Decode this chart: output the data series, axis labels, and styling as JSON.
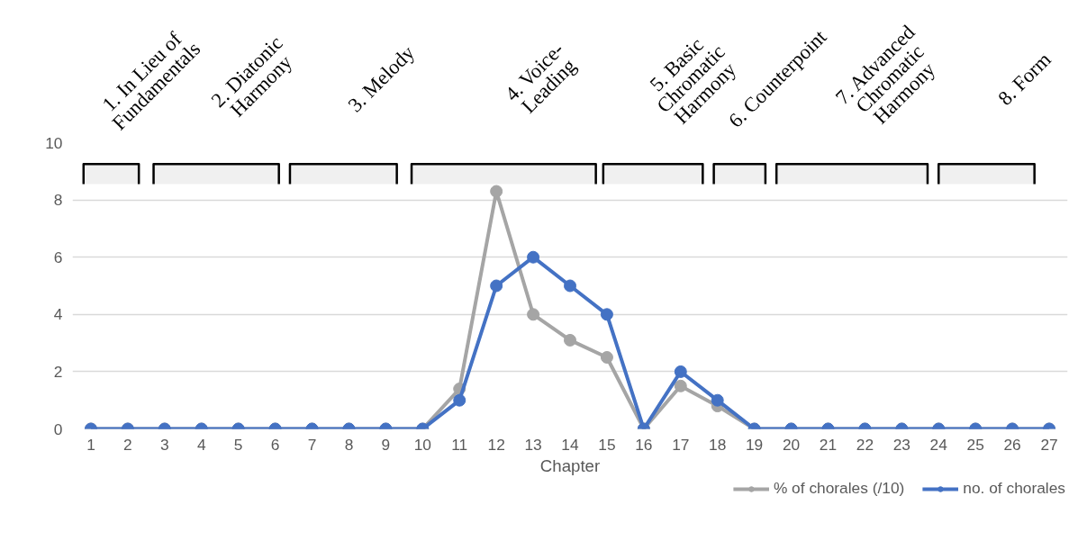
{
  "chart_data": {
    "type": "line",
    "xlabel": "Chapter",
    "x": [
      1,
      2,
      3,
      4,
      5,
      6,
      7,
      8,
      9,
      10,
      11,
      12,
      13,
      14,
      15,
      16,
      17,
      18,
      19,
      20,
      21,
      22,
      23,
      24,
      25,
      26,
      27
    ],
    "series": [
      {
        "name": "% of chorales (/10)",
        "color": "#a5a5a5",
        "values": [
          0,
          0,
          0,
          0,
          0,
          0,
          0,
          0,
          0,
          0,
          1.4,
          8.3,
          4.0,
          3.1,
          2.5,
          0,
          1.5,
          0.8,
          0,
          0,
          0,
          0,
          0,
          0,
          0,
          0,
          0
        ]
      },
      {
        "name": "no. of chorales",
        "color": "#4472c4",
        "values": [
          0,
          0,
          0,
          0,
          0,
          0,
          0,
          0,
          0,
          0,
          1,
          5,
          6,
          5,
          4,
          0,
          2,
          1,
          0,
          0,
          0,
          0,
          0,
          0,
          0,
          0,
          0
        ]
      }
    ],
    "xlim": [
      0.5,
      27.5
    ],
    "xticks": [
      1,
      2,
      3,
      4,
      5,
      6,
      7,
      8,
      9,
      10,
      11,
      12,
      13,
      14,
      15,
      16,
      17,
      18,
      19,
      20,
      21,
      22,
      23,
      24,
      25,
      26,
      27
    ],
    "ylim": [
      0,
      10
    ],
    "yticks": [
      0,
      2,
      4,
      6,
      8,
      10
    ],
    "bands": [
      {
        "axis": "x",
        "from": 0.8,
        "to": 2.3,
        "label": "1. In Lieu of\nFundamentals",
        "color": "#000000"
      },
      {
        "axis": "x",
        "from": 2.7,
        "to": 6.1,
        "label": "2. Diatonic\nHarmony",
        "color": "#000000"
      },
      {
        "axis": "x",
        "from": 6.4,
        "to": 9.3,
        "label": "3. Melody",
        "color": "#000000"
      },
      {
        "axis": "x",
        "from": 9.7,
        "to": 14.7,
        "label": "4. Voice-\nLeading",
        "color": "#000000"
      },
      {
        "axis": "x",
        "from": 14.9,
        "to": 17.6,
        "label": "5. Basic\nChromatic\nHarmony",
        "color": "#000000"
      },
      {
        "axis": "x",
        "from": 17.9,
        "to": 19.3,
        "label": "6. Counterpoint",
        "color": "#000000"
      },
      {
        "axis": "x",
        "from": 19.6,
        "to": 23.7,
        "label": "7. Advanced\nChromatic\nHarmony",
        "color": "#000000"
      },
      {
        "axis": "x",
        "from": 24.0,
        "to": 26.6,
        "label": "8. Form",
        "color": "#000000"
      }
    ],
    "grid": "y",
    "legend": "bottom",
    "marker": "circle",
    "line_style": "solid"
  }
}
